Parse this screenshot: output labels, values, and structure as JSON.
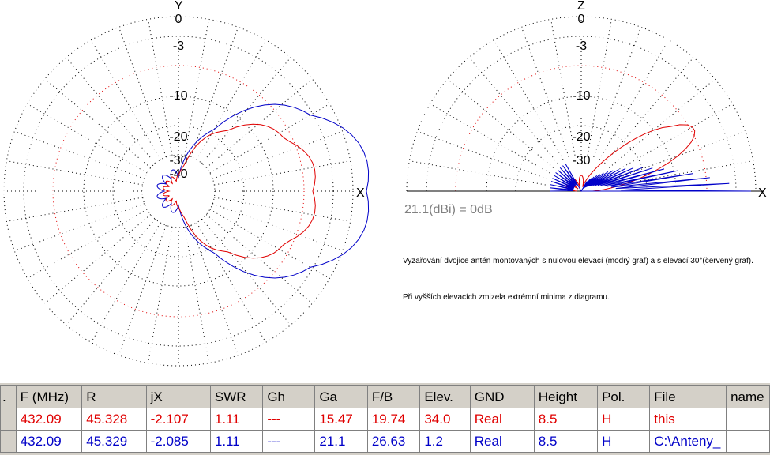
{
  "left_plot": {
    "axis_top": "Y",
    "axis_right": "X",
    "ring_labels": [
      "0",
      "-3",
      "-10",
      "-20",
      "-30",
      "-40"
    ]
  },
  "right_plot": {
    "axis_top": "Z",
    "axis_right": "X",
    "ring_labels": [
      "0",
      "-3",
      "-10",
      "-20",
      "-30"
    ],
    "reference_label": "21.1(dBi) = 0dB"
  },
  "notes": {
    "line1": "Vyzařování dvojice antén montovaných s nulovou elevací (modrý graf) a s elevací 30°(červený graf).",
    "line2": "Při vyšších elevacích zmizela extrémní minima z diagramu."
  },
  "colors": {
    "series_red": "#e00000",
    "series_blue": "#0000c8"
  },
  "table": {
    "headers": [
      ".",
      "F (MHz)",
      "R",
      "jX",
      "SWR",
      "Gh",
      "Ga",
      "F/B",
      "Elev.",
      "GND",
      "Height",
      "Pol.",
      "File",
      "name"
    ],
    "rows": [
      [
        "",
        "432.09",
        "45.328",
        "-2.107",
        "1.11",
        "---",
        "15.47",
        "19.74",
        "34.0",
        "Real",
        "8.5",
        "H",
        "this",
        ""
      ],
      [
        "",
        "432.09",
        "45.329",
        "-2.085",
        "1.11",
        "---",
        "21.1",
        "26.63",
        "1.2",
        "Real",
        "8.5",
        "H",
        "C:\\Anteny_",
        ""
      ]
    ]
  }
}
